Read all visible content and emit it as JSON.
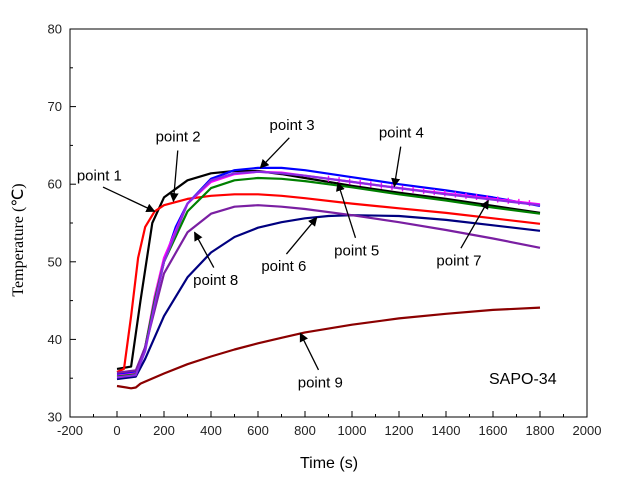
{
  "chart_data": {
    "type": "line",
    "title": "",
    "xlabel": "Time (s)",
    "ylabel": "Temperature (℃)",
    "xlim": [
      -200,
      2000
    ],
    "ylim": [
      30,
      80
    ],
    "xticks": [
      -200,
      0,
      200,
      400,
      600,
      800,
      1000,
      1200,
      1400,
      1600,
      1800,
      2000
    ],
    "xtick_labels": [
      "-200",
      "0",
      "200",
      "400",
      "600",
      "800",
      "1000",
      "1200",
      "1400",
      "1600",
      "1800",
      "2000"
    ],
    "yticks": [
      30,
      40,
      50,
      60,
      70,
      80
    ],
    "ytick_labels": [
      "30",
      "40",
      "50",
      "60",
      "70",
      "80"
    ],
    "corner_label": "SAPO-34",
    "series": [
      {
        "name": "point 1",
        "color": "#000000",
        "x": [
          0,
          60,
          100,
          150,
          200,
          300,
          400,
          500,
          600,
          700,
          800,
          1000,
          1200,
          1400,
          1600,
          1800
        ],
        "y": [
          36.2,
          36.5,
          45,
          55,
          58.3,
          60.5,
          61.4,
          61.7,
          61.7,
          61.3,
          60.8,
          59.8,
          58.9,
          58.1,
          57.2,
          56.3
        ]
      },
      {
        "name": "point 2",
        "color": "#ff0000",
        "x": [
          0,
          30,
          60,
          90,
          120,
          160,
          200,
          300,
          400,
          500,
          600,
          700,
          800,
          1000,
          1200,
          1400,
          1600,
          1800
        ],
        "y": [
          35.8,
          36.2,
          43,
          50.5,
          54.5,
          56.5,
          57.3,
          58.1,
          58.5,
          58.7,
          58.7,
          58.5,
          58.2,
          57.5,
          56.9,
          56.3,
          55.6,
          54.9
        ]
      },
      {
        "name": "point 3",
        "color": "#0000ff",
        "x": [
          0,
          80,
          120,
          160,
          200,
          250,
          300,
          400,
          500,
          600,
          700,
          800,
          1000,
          1200,
          1400,
          1600,
          1800
        ],
        "y": [
          35.5,
          35.8,
          39,
          45,
          50,
          54.5,
          57.5,
          60.7,
          61.8,
          62.1,
          62.1,
          61.8,
          60.9,
          60,
          59.2,
          58.3,
          57.2
        ]
      },
      {
        "name": "point 4",
        "color": "#ff00ff",
        "x": [
          0,
          80,
          120,
          160,
          200,
          300,
          400,
          500,
          600,
          700,
          800,
          1000,
          1200,
          1400,
          1600,
          1800
        ],
        "y": [
          35.3,
          35.6,
          39,
          45.5,
          50.5,
          57.5,
          60.3,
          61.3,
          61.6,
          61.5,
          61.1,
          60.3,
          59.5,
          58.8,
          58.1,
          57.4
        ]
      },
      {
        "name": "point 5",
        "color": "#008000",
        "x": [
          0,
          80,
          120,
          160,
          200,
          300,
          400,
          500,
          600,
          700,
          800,
          1000,
          1200,
          1400,
          1600,
          1800
        ],
        "y": [
          35.2,
          35.5,
          39,
          45,
          50,
          56.5,
          59.5,
          60.5,
          60.8,
          60.7,
          60.4,
          59.6,
          58.7,
          57.9,
          57,
          56.2
        ]
      },
      {
        "name": "point 6",
        "color": "#000080",
        "x": [
          0,
          80,
          120,
          200,
          300,
          400,
          500,
          600,
          700,
          800,
          900,
          1000,
          1200,
          1400,
          1600,
          1800
        ],
        "y": [
          34.9,
          35.2,
          37.5,
          43,
          48,
          51.2,
          53.2,
          54.4,
          55.1,
          55.6,
          55.9,
          56,
          55.9,
          55.4,
          54.7,
          54
        ]
      },
      {
        "name": "point 7",
        "color": "#7a1fa2",
        "x": [
          0,
          80,
          120,
          200,
          300,
          400,
          500,
          600,
          700,
          800,
          1000,
          1200,
          1400,
          1600,
          1800
        ],
        "y": [
          35.7,
          36,
          39,
          48.5,
          53.8,
          56.2,
          57.1,
          57.3,
          57.1,
          56.8,
          56,
          55.1,
          54.1,
          53,
          51.8
        ]
      },
      {
        "name": "point 8",
        "color": "#8a2be2",
        "x": [
          0,
          80,
          120,
          160,
          200,
          300,
          400,
          500,
          600,
          700,
          800,
          1000,
          1200,
          1400,
          1600,
          1800
        ],
        "y": [
          35.1,
          35.4,
          38.5,
          44.5,
          50,
          57.5,
          60.5,
          61.4,
          61.6,
          61.4,
          61.1,
          60.3,
          59.5,
          58.7,
          58,
          57.3
        ]
      },
      {
        "name": "point 9",
        "color": "#8b0000",
        "x": [
          0,
          60,
          80,
          100,
          200,
          300,
          400,
          500,
          600,
          700,
          800,
          1000,
          1200,
          1400,
          1600,
          1800
        ],
        "y": [
          34,
          33.7,
          33.8,
          34.3,
          35.6,
          36.8,
          37.8,
          38.7,
          39.5,
          40.2,
          40.9,
          41.9,
          42.7,
          43.3,
          43.8,
          44.1
        ]
      }
    ],
    "annotations": [
      {
        "text": "point 1",
        "tx": -75,
        "ty": 60.5,
        "ax": 160,
        "ay": 56.5
      },
      {
        "text": "point 2",
        "tx": 260,
        "ty": 65.5,
        "ax": 240,
        "ay": 57.8
      },
      {
        "text": "point 3",
        "tx": 745,
        "ty": 67,
        "ax": 610,
        "ay": 62.1
      },
      {
        "text": "point 4",
        "tx": 1210,
        "ty": 66,
        "ax": 1180,
        "ay": 59.7
      },
      {
        "text": "point 5",
        "tx": 1020,
        "ty": 50.8,
        "ax": 940,
        "ay": 60.2
      },
      {
        "text": "point 6",
        "tx": 710,
        "ty": 48.8,
        "ax": 850,
        "ay": 55.7
      },
      {
        "text": "point 7",
        "tx": 1455,
        "ty": 49.5,
        "ax": 1580,
        "ay": 57.9
      },
      {
        "text": "point 8",
        "tx": 420,
        "ty": 47,
        "ax": 330,
        "ay": 53.8
      },
      {
        "text": "point 9",
        "tx": 865,
        "ty": 33.8,
        "ax": 780,
        "ay": 40.8
      }
    ]
  }
}
